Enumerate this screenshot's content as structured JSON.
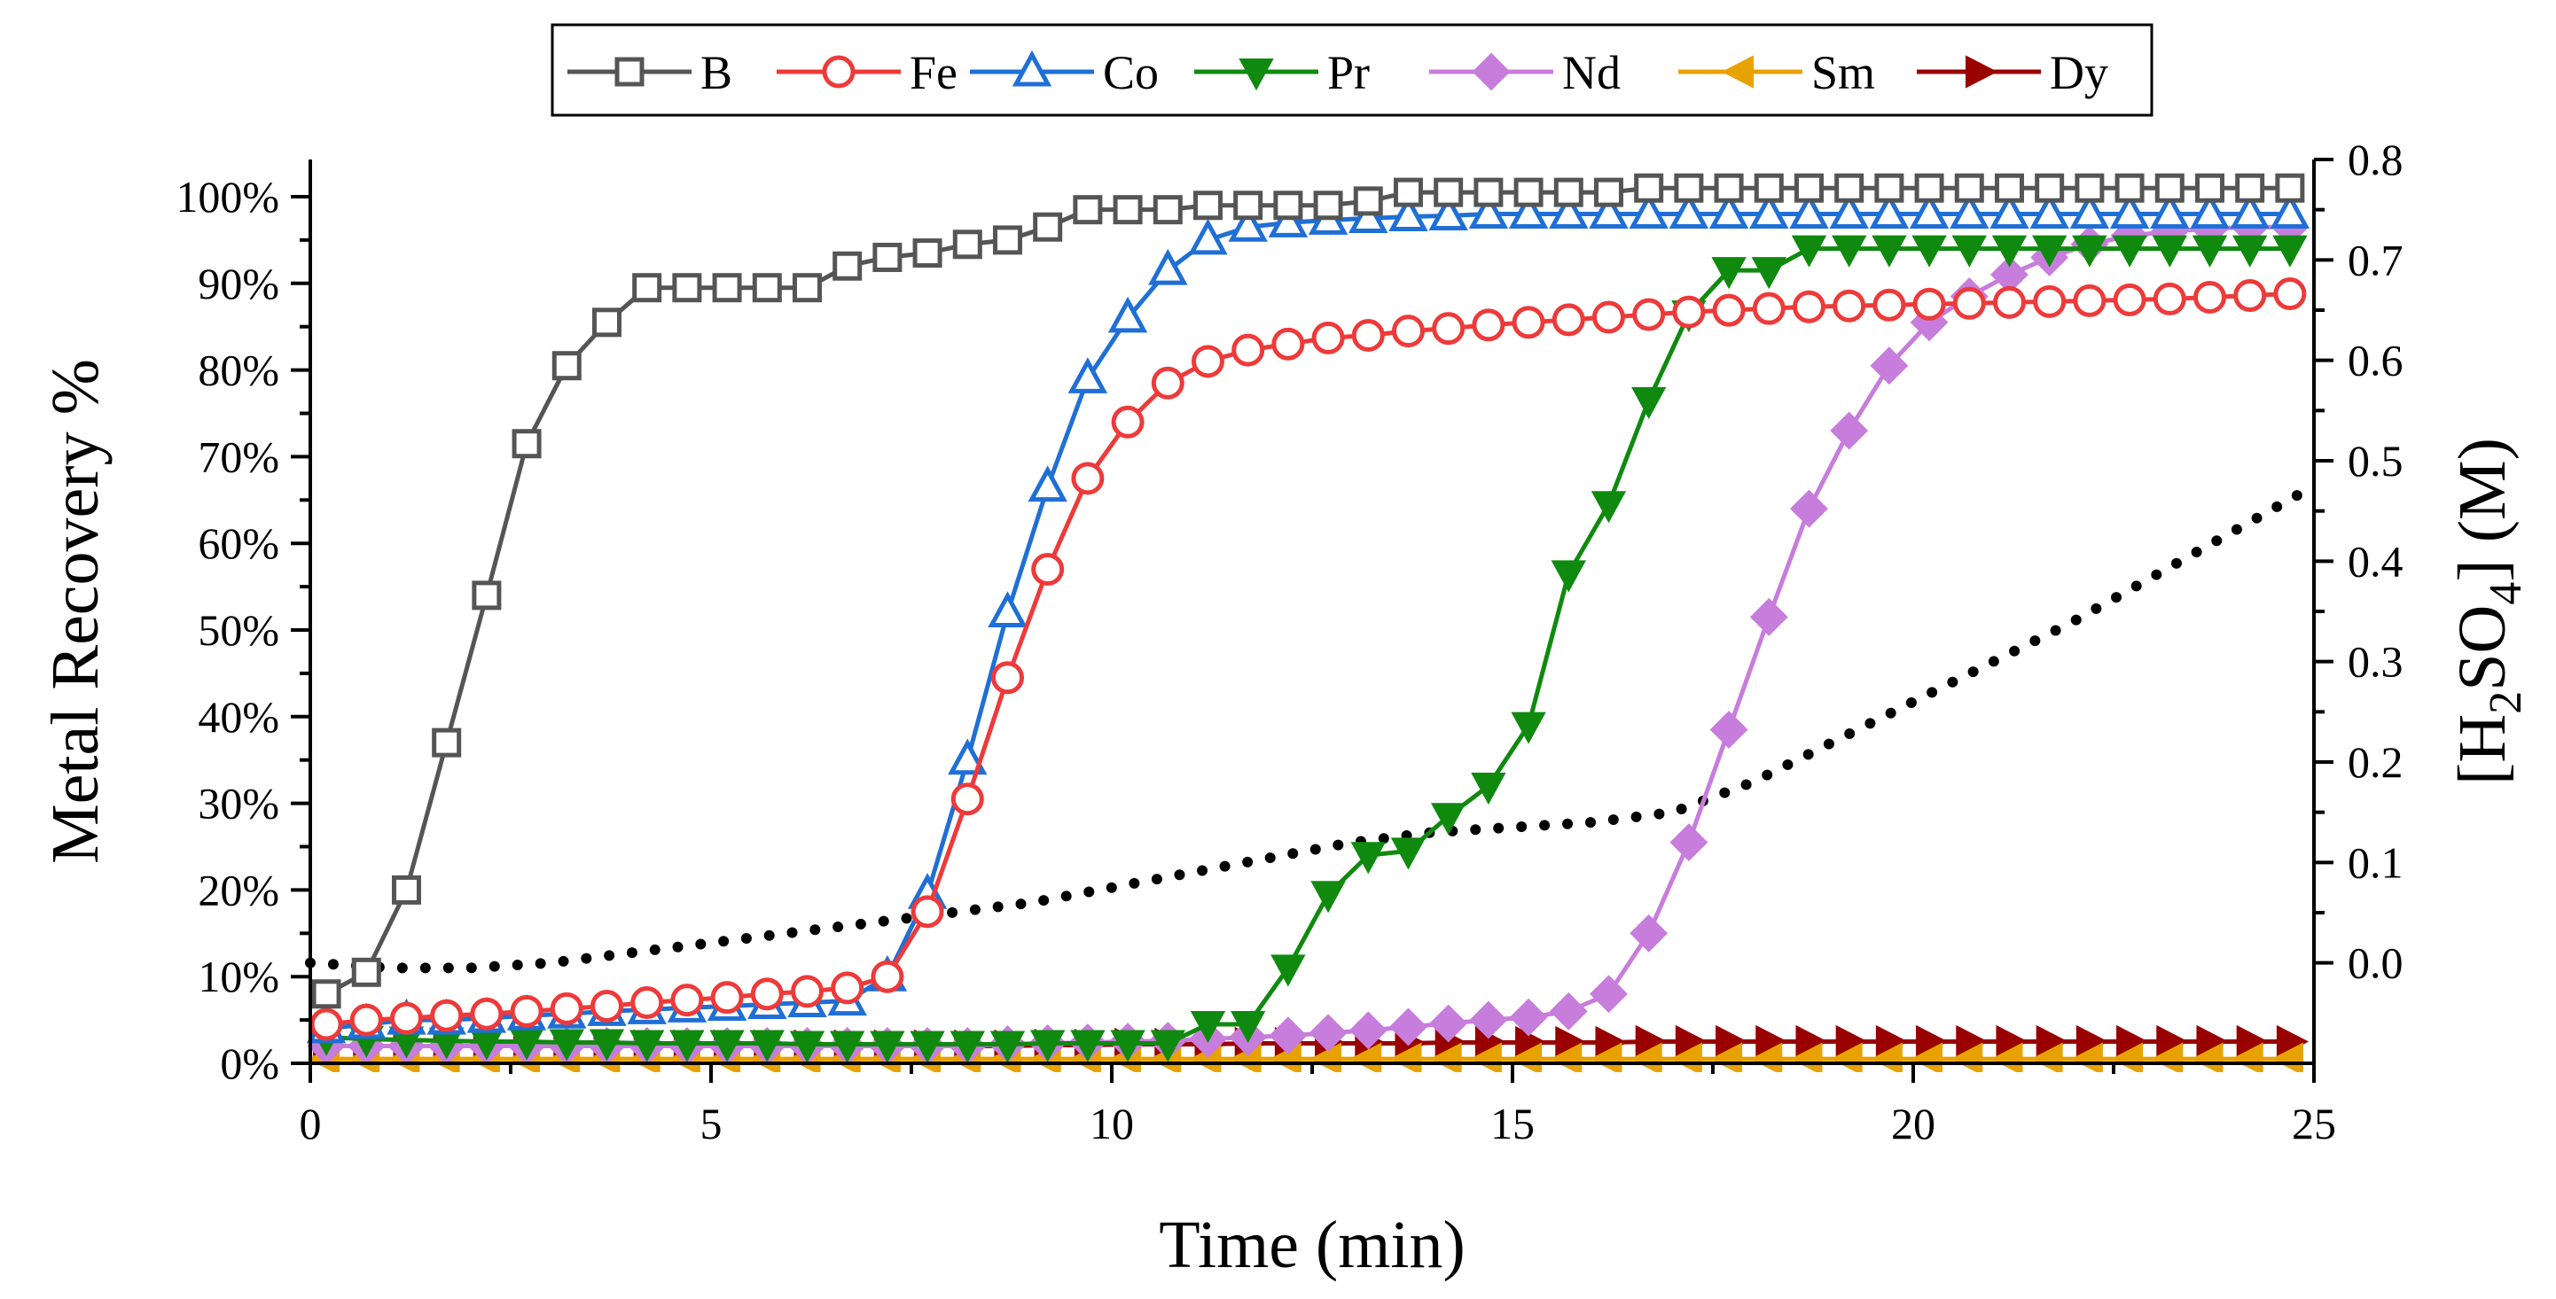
{
  "chart_data": {
    "type": "line",
    "title": "",
    "xlabel": "Time (min)",
    "ylabel": "Metal Recovery %",
    "y2label": {
      "prefix": "[H",
      "sub1": "2",
      "mid": "SO",
      "sub2": "4",
      "suffix": "] (M)"
    },
    "xlim": [
      0,
      25
    ],
    "ylim": [
      0,
      100
    ],
    "y2lim": [
      -0.1,
      0.8
    ],
    "xticks": [
      0,
      5,
      10,
      15,
      20,
      25
    ],
    "yticks": [
      0,
      10,
      20,
      30,
      40,
      50,
      60,
      70,
      80,
      90,
      100
    ],
    "yticklabels": [
      "0%",
      "10%",
      "20%",
      "30%",
      "40%",
      "50%",
      "60%",
      "70%",
      "80%",
      "90%",
      "100%"
    ],
    "y2ticks": [
      0.0,
      0.1,
      0.2,
      0.3,
      0.4,
      0.5,
      0.6,
      0.7,
      0.8
    ],
    "y2ticklabels": [
      "0.0",
      "0.1",
      "0.2",
      "0.3",
      "0.4",
      "0.5",
      "0.6",
      "0.7",
      "0.8"
    ],
    "legend_position": "top-center",
    "series": [
      {
        "name": "B",
        "color": "#555555",
        "marker": "square-open",
        "x": [
          0.2,
          0.7,
          1.2,
          1.7,
          2.2,
          2.7,
          3.2,
          3.7,
          4.2,
          4.7,
          5.2,
          5.7,
          6.2,
          6.7,
          7.2,
          7.7,
          8.2,
          8.7,
          9.2,
          9.7,
          10.2,
          10.7,
          11.2,
          11.7,
          12.2,
          12.7,
          13.2,
          13.7,
          14.2,
          14.7,
          15.2,
          15.7,
          16.2,
          16.7,
          17.2,
          17.7,
          18.2,
          18.7,
          19.2,
          19.7,
          20.2,
          20.7,
          21.2,
          21.7,
          22.2,
          22.7,
          23.2,
          23.7,
          24.2,
          24.7
        ],
        "y": [
          8,
          10.5,
          20,
          37,
          54,
          71.5,
          80.5,
          85.5,
          89.5,
          89.5,
          89.5,
          89.5,
          89.5,
          92,
          93,
          93.5,
          94.5,
          95,
          96.5,
          98.5,
          98.5,
          98.5,
          99,
          99,
          99,
          99,
          99.5,
          100.5,
          100.5,
          100.5,
          100.5,
          100.5,
          100.5,
          101,
          101,
          101,
          101,
          101,
          101,
          101,
          101,
          101,
          101,
          101,
          101,
          101,
          101,
          101,
          101,
          101
        ]
      },
      {
        "name": "Fe",
        "color": "#ee3a3a",
        "marker": "circle-open",
        "x": [
          0.2,
          0.7,
          1.2,
          1.7,
          2.2,
          2.7,
          3.2,
          3.7,
          4.2,
          4.7,
          5.2,
          5.7,
          6.2,
          6.7,
          7.2,
          7.7,
          8.2,
          8.7,
          9.2,
          9.7,
          10.2,
          10.7,
          11.2,
          11.7,
          12.2,
          12.7,
          13.2,
          13.7,
          14.2,
          14.7,
          15.2,
          15.7,
          16.2,
          16.7,
          17.2,
          17.7,
          18.2,
          18.7,
          19.2,
          19.7,
          20.2,
          20.7,
          21.2,
          21.7,
          22.2,
          22.7,
          23.2,
          23.7,
          24.2,
          24.7
        ],
        "y": [
          4.5,
          5,
          5.2,
          5.5,
          5.7,
          6,
          6.3,
          6.6,
          7,
          7.3,
          7.6,
          8,
          8.3,
          8.7,
          10,
          17.5,
          30.5,
          44.5,
          57,
          67.5,
          74,
          78.5,
          81,
          82.3,
          83,
          83.7,
          84,
          84.5,
          84.8,
          85.2,
          85.5,
          85.8,
          86.1,
          86.4,
          86.7,
          86.9,
          87.1,
          87.3,
          87.4,
          87.5,
          87.6,
          87.7,
          87.8,
          87.9,
          88,
          88.1,
          88.2,
          88.4,
          88.6,
          88.8
        ]
      },
      {
        "name": "Co",
        "color": "#1f6fd6",
        "marker": "triangle-up-open",
        "x": [
          0.2,
          0.7,
          1.2,
          1.7,
          2.2,
          2.7,
          3.2,
          3.7,
          4.2,
          4.7,
          5.2,
          5.7,
          6.2,
          6.7,
          7.2,
          7.7,
          8.2,
          8.7,
          9.2,
          9.7,
          10.2,
          10.7,
          11.2,
          11.7,
          12.2,
          12.7,
          13.2,
          13.7,
          14.2,
          14.7,
          15.2,
          15.7,
          16.2,
          16.7,
          17.2,
          17.7,
          18.2,
          18.7,
          19.2,
          19.7,
          20.2,
          20.7,
          21.2,
          21.7,
          22.2,
          22.7,
          23.2,
          23.7,
          24.2,
          24.7
        ],
        "y": [
          4,
          4.5,
          5,
          5,
          5.2,
          5.5,
          5.7,
          6,
          6.2,
          6.4,
          6.6,
          6.8,
          7,
          7.2,
          10,
          19.5,
          35,
          52,
          66.5,
          79,
          86,
          91.5,
          95,
          96.5,
          97,
          97.3,
          97.5,
          97.7,
          97.8,
          98,
          98,
          98,
          98,
          98,
          98,
          98,
          98,
          98,
          98,
          98,
          98,
          98,
          98,
          98,
          98,
          98,
          98,
          98,
          98,
          98
        ]
      },
      {
        "name": "Pr",
        "color": "#0f8a0f",
        "marker": "triangle-down-filled",
        "x": [
          0.2,
          0.7,
          1.2,
          1.7,
          2.2,
          2.7,
          3.2,
          3.7,
          4.2,
          4.7,
          5.2,
          5.7,
          6.2,
          6.7,
          7.2,
          7.7,
          8.2,
          8.7,
          9.2,
          9.7,
          10.2,
          10.7,
          11.2,
          11.7,
          12.2,
          12.7,
          13.2,
          13.7,
          14.2,
          14.7,
          15.2,
          15.7,
          16.2,
          16.7,
          17.2,
          17.7,
          18.2,
          18.7,
          19.2,
          19.7,
          20.2,
          20.7,
          21.2,
          21.7,
          22.2,
          22.7,
          23.2,
          23.7,
          24.2,
          24.7
        ],
        "y": [
          3,
          2.8,
          2.7,
          2.6,
          2.5,
          2.5,
          2.4,
          2.4,
          2.3,
          2.3,
          2.3,
          2.3,
          2.2,
          2.2,
          2.2,
          2.2,
          2.2,
          2.2,
          2.3,
          2.3,
          2.3,
          2.3,
          4.5,
          4.5,
          11,
          19.5,
          24,
          24.5,
          28.5,
          32,
          39,
          56.5,
          64.5,
          76.5,
          86.5,
          91.5,
          91.5,
          94,
          94,
          94,
          94,
          94,
          94,
          94,
          94,
          94,
          94,
          94,
          94,
          94
        ]
      },
      {
        "name": "Nd",
        "color": "#c77ddb",
        "marker": "diamond-filled",
        "x": [
          0.2,
          0.7,
          1.2,
          1.7,
          2.2,
          2.7,
          3.2,
          3.7,
          4.2,
          4.7,
          5.2,
          5.7,
          6.2,
          6.7,
          7.2,
          7.7,
          8.2,
          8.7,
          9.2,
          9.7,
          10.2,
          10.7,
          11.2,
          11.7,
          12.2,
          12.7,
          13.2,
          13.7,
          14.2,
          14.7,
          15.2,
          15.7,
          16.2,
          16.7,
          17.2,
          17.7,
          18.2,
          18.7,
          19.2,
          19.7,
          20.2,
          20.7,
          21.2,
          21.7,
          22.2,
          22.7,
          23.2,
          23.7,
          24.2,
          24.7
        ],
        "y": [
          2,
          2,
          2,
          2,
          2,
          2,
          2,
          2,
          2,
          2,
          2,
          2,
          2,
          2,
          2,
          2,
          2,
          2.2,
          2.3,
          2.4,
          2.5,
          2.6,
          2.8,
          3,
          3.2,
          3.5,
          3.8,
          4.2,
          4.6,
          5,
          5.3,
          6,
          8,
          15,
          25.5,
          38.5,
          51.5,
          64,
          73,
          80.5,
          85.5,
          88.5,
          91,
          93,
          94.5,
          95.5,
          96,
          96.3,
          96.5,
          96.5
        ]
      },
      {
        "name": "Sm",
        "color": "#e8a200",
        "marker": "triangle-left-filled",
        "x": [
          0.2,
          0.7,
          1.2,
          1.7,
          2.2,
          2.7,
          3.2,
          3.7,
          4.2,
          4.7,
          5.2,
          5.7,
          6.2,
          6.7,
          7.2,
          7.7,
          8.2,
          8.7,
          9.2,
          9.7,
          10.2,
          10.7,
          11.2,
          11.7,
          12.2,
          12.7,
          13.2,
          13.7,
          14.2,
          14.7,
          15.2,
          15.7,
          16.2,
          16.7,
          17.2,
          17.7,
          18.2,
          18.7,
          19.2,
          19.7,
          20.2,
          20.7,
          21.2,
          21.7,
          22.2,
          22.7,
          23.2,
          23.7,
          24.2,
          24.7
        ],
        "y": [
          0.5,
          0.5,
          0.5,
          0.5,
          0.5,
          0.5,
          0.5,
          0.5,
          0.5,
          0.5,
          0.5,
          0.5,
          0.5,
          0.5,
          0.5,
          0.5,
          0.5,
          0.5,
          0.5,
          0.5,
          0.5,
          0.5,
          0.5,
          0.5,
          0.5,
          0.5,
          0.5,
          0.5,
          0.5,
          0.5,
          0.5,
          0.5,
          0.5,
          0.5,
          0.5,
          0.5,
          0.5,
          0.5,
          0.5,
          0.5,
          0.5,
          0.5,
          0.5,
          0.5,
          0.5,
          0.5,
          0.5,
          0.5,
          0.5,
          0.5
        ]
      },
      {
        "name": "Dy",
        "color": "#990000",
        "marker": "triangle-right-filled",
        "x": [
          0.2,
          0.7,
          1.2,
          1.7,
          2.2,
          2.7,
          3.2,
          3.7,
          4.2,
          4.7,
          5.2,
          5.7,
          6.2,
          6.7,
          7.2,
          7.7,
          8.2,
          8.7,
          9.2,
          9.7,
          10.2,
          10.7,
          11.2,
          11.7,
          12.2,
          12.7,
          13.2,
          13.7,
          14.2,
          14.7,
          15.2,
          15.7,
          16.2,
          16.7,
          17.2,
          17.7,
          18.2,
          18.7,
          19.2,
          19.7,
          20.2,
          20.7,
          21.2,
          21.7,
          22.2,
          22.7,
          23.2,
          23.7,
          24.2,
          24.7
        ],
        "y": [
          2,
          2,
          2,
          2,
          2,
          2,
          2,
          2,
          2,
          2,
          2,
          2,
          2,
          2,
          2,
          2,
          2,
          2,
          2.1,
          2.1,
          2.2,
          2.2,
          2.2,
          2.3,
          2.3,
          2.3,
          2.3,
          2.3,
          2.4,
          2.4,
          2.4,
          2.4,
          2.4,
          2.5,
          2.5,
          2.5,
          2.5,
          2.5,
          2.5,
          2.5,
          2.5,
          2.5,
          2.5,
          2.5,
          2.5,
          2.5,
          2.5,
          2.5,
          2.5,
          2.5
        ]
      }
    ],
    "acid_series": {
      "name": "[H2SO4] (M)",
      "axis": "right",
      "color": "#000000",
      "style": "dotted",
      "x": [
        0,
        1,
        2,
        3,
        4,
        5,
        6,
        7,
        8,
        9,
        10,
        11,
        12,
        13,
        14,
        15,
        16,
        17,
        18,
        19,
        20,
        21,
        22,
        23,
        24,
        25
      ],
      "y": [
        0.0,
        -0.005,
        -0.005,
        0.0,
        0.01,
        0.02,
        0.03,
        0.04,
        0.05,
        0.06,
        0.075,
        0.09,
        0.105,
        0.12,
        0.13,
        0.135,
        0.14,
        0.15,
        0.18,
        0.22,
        0.26,
        0.3,
        0.34,
        0.385,
        0.43,
        0.475
      ]
    }
  }
}
